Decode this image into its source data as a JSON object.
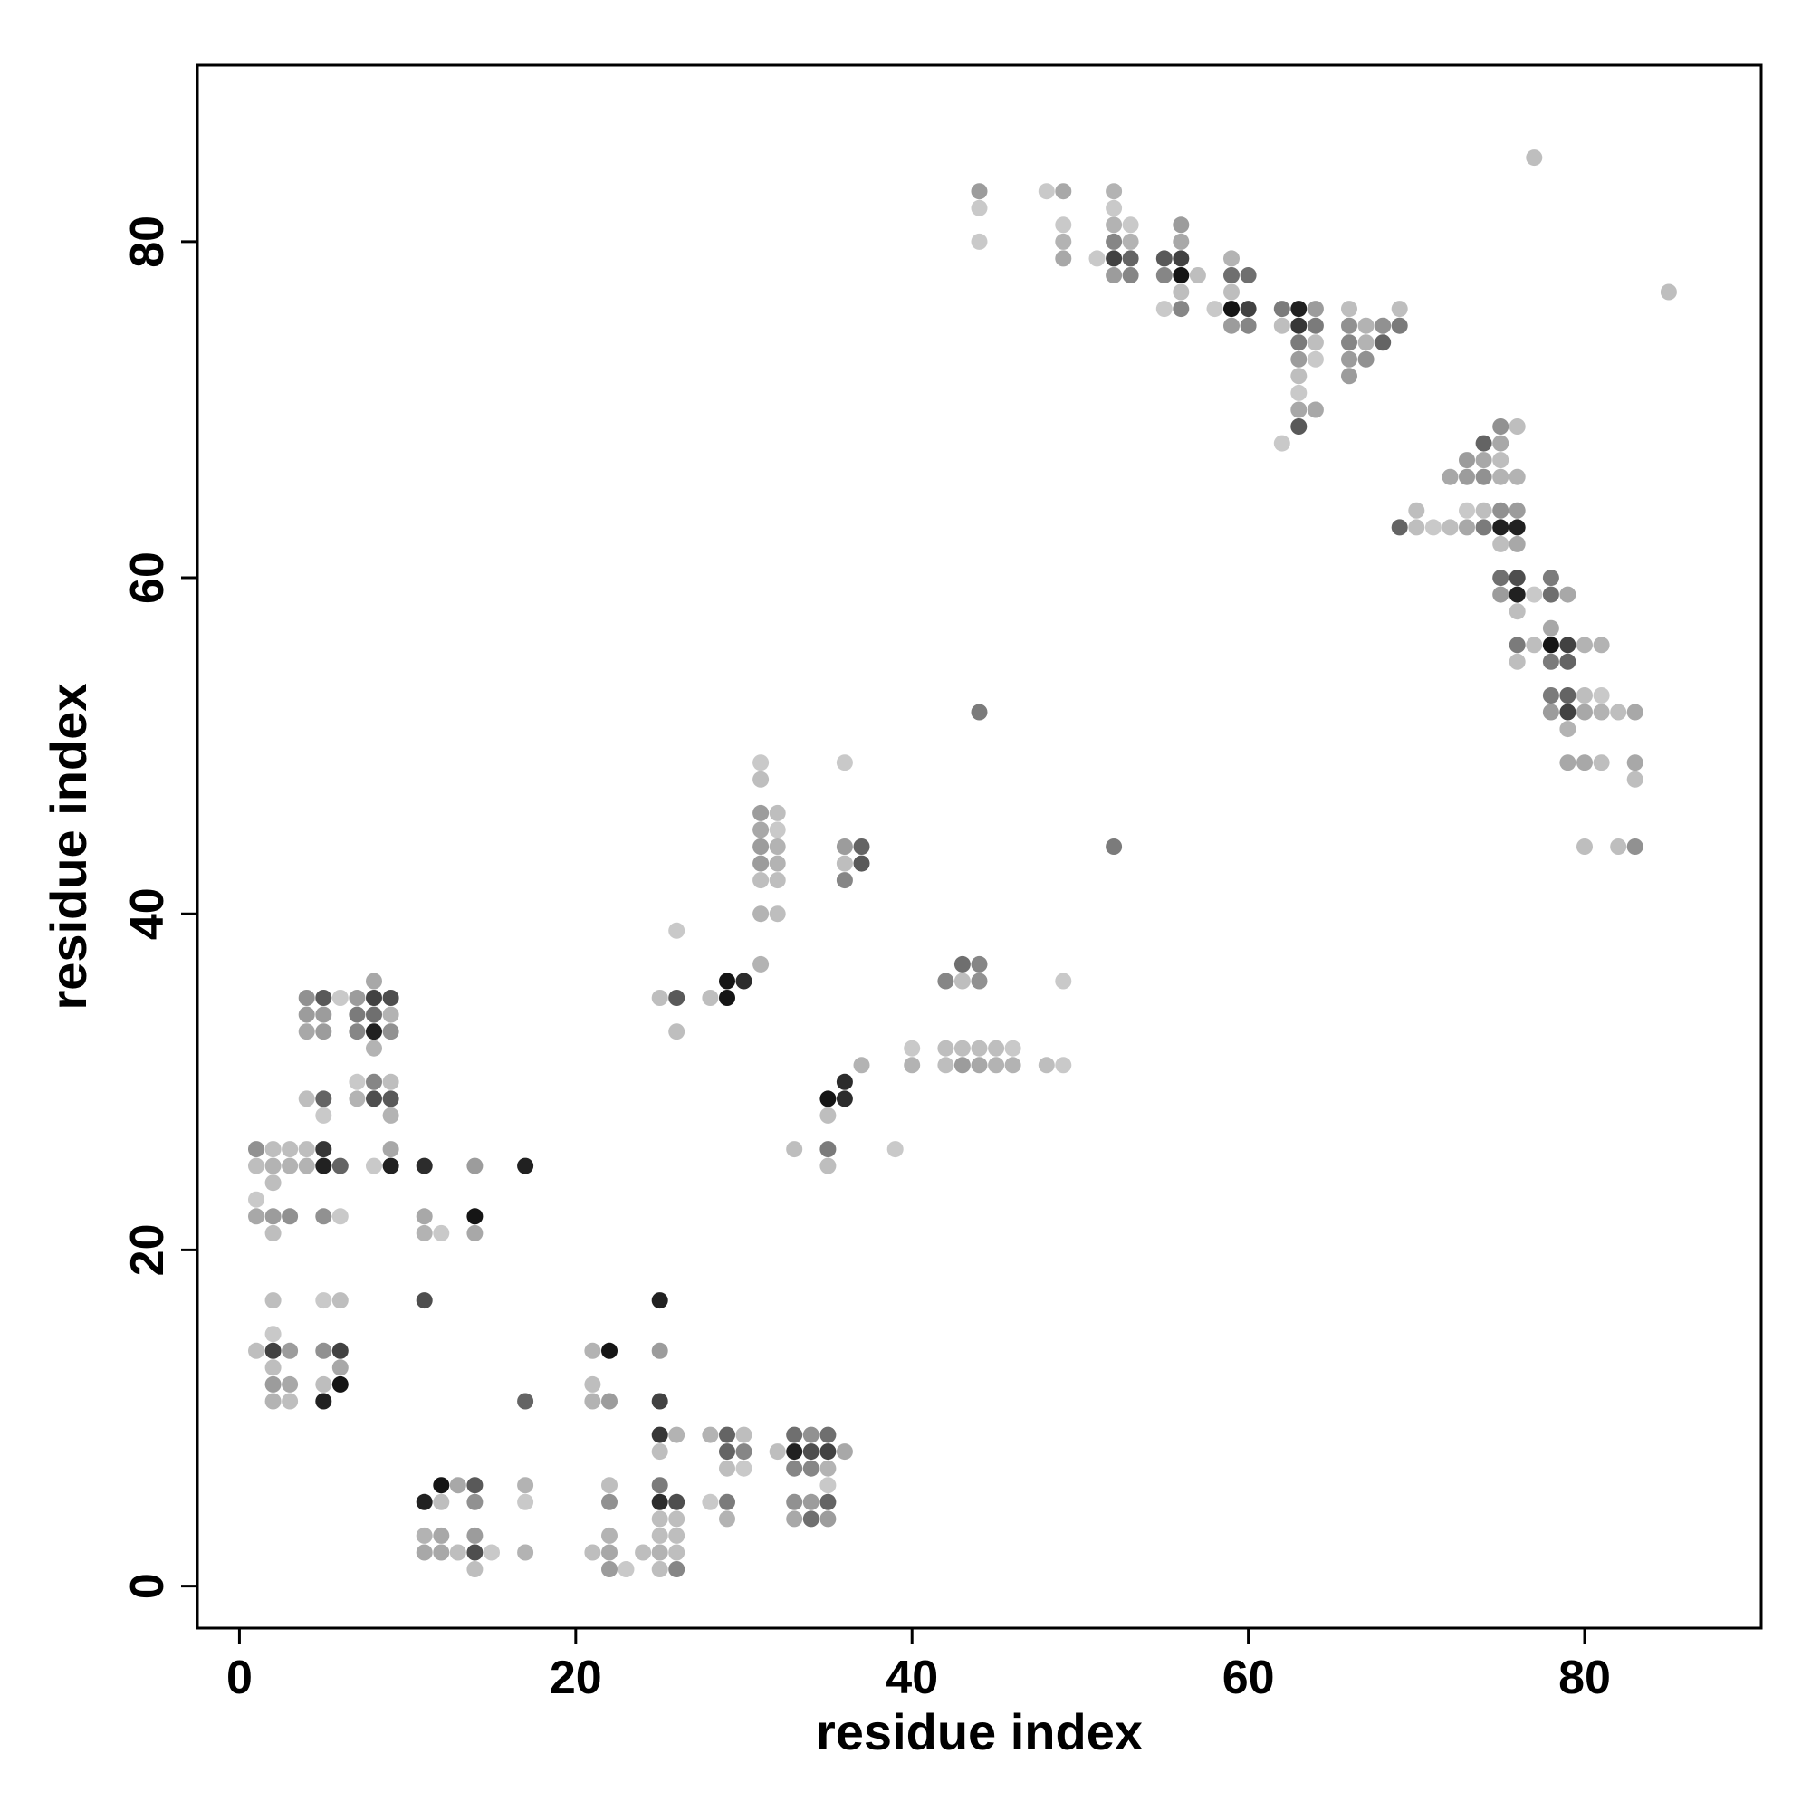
{
  "chart_data": {
    "type": "scatter",
    "title": "",
    "xlabel": "residue index",
    "ylabel": "residue index",
    "xlim": [
      -2.5,
      90.5
    ],
    "ylim": [
      -2.5,
      90.5
    ],
    "x_ticks": [
      0,
      20,
      40,
      60,
      80
    ],
    "y_ticks": [
      0,
      20,
      40,
      60,
      80
    ],
    "grid": false,
    "legend": "none",
    "color_scale": "grayscale; darker points indicate stronger contact (0 = lightest, 1 = darkest)",
    "points": [
      [
        1,
        26,
        0.4
      ],
      [
        1,
        25,
        0.2
      ],
      [
        1,
        23,
        0.15
      ],
      [
        1,
        22,
        0.3
      ],
      [
        1,
        14,
        0.2
      ],
      [
        2,
        26,
        0.2
      ],
      [
        2,
        25,
        0.25
      ],
      [
        2,
        24,
        0.2
      ],
      [
        2,
        22,
        0.35
      ],
      [
        2,
        21,
        0.2
      ],
      [
        2,
        17,
        0.2
      ],
      [
        2,
        15,
        0.15
      ],
      [
        2,
        14,
        0.75
      ],
      [
        2,
        13,
        0.2
      ],
      [
        2,
        12,
        0.35
      ],
      [
        2,
        11,
        0.25
      ],
      [
        3,
        26,
        0.2
      ],
      [
        3,
        25,
        0.25
      ],
      [
        3,
        22,
        0.4
      ],
      [
        3,
        14,
        0.35
      ],
      [
        3,
        12,
        0.3
      ],
      [
        3,
        11,
        0.2
      ],
      [
        4,
        35,
        0.4
      ],
      [
        4,
        34,
        0.35
      ],
      [
        4,
        33,
        0.3
      ],
      [
        4,
        29,
        0.2
      ],
      [
        4,
        26,
        0.2
      ],
      [
        4,
        25,
        0.25
      ],
      [
        5,
        35,
        0.65
      ],
      [
        5,
        34,
        0.35
      ],
      [
        5,
        33,
        0.35
      ],
      [
        5,
        29,
        0.6
      ],
      [
        5,
        28,
        0.15
      ],
      [
        5,
        26,
        0.8
      ],
      [
        5,
        25,
        0.9
      ],
      [
        5,
        22,
        0.4
      ],
      [
        5,
        17,
        0.15
      ],
      [
        5,
        14,
        0.4
      ],
      [
        5,
        12,
        0.2
      ],
      [
        5,
        11,
        0.9
      ],
      [
        6,
        35,
        0.15
      ],
      [
        6,
        25,
        0.6
      ],
      [
        6,
        22,
        0.15
      ],
      [
        6,
        17,
        0.2
      ],
      [
        6,
        14,
        0.75
      ],
      [
        6,
        13,
        0.3
      ],
      [
        6,
        12,
        0.95
      ],
      [
        7,
        35,
        0.35
      ],
      [
        7,
        34,
        0.5
      ],
      [
        7,
        33,
        0.45
      ],
      [
        7,
        30,
        0.15
      ],
      [
        7,
        29,
        0.25
      ],
      [
        8,
        36,
        0.3
      ],
      [
        8,
        35,
        0.75
      ],
      [
        8,
        34,
        0.55
      ],
      [
        8,
        33,
        0.9
      ],
      [
        8,
        32,
        0.25
      ],
      [
        8,
        30,
        0.45
      ],
      [
        8,
        29,
        0.7
      ],
      [
        8,
        25,
        0.15
      ],
      [
        9,
        35,
        0.7
      ],
      [
        9,
        34,
        0.25
      ],
      [
        9,
        33,
        0.4
      ],
      [
        9,
        30,
        0.2
      ],
      [
        9,
        29,
        0.65
      ],
      [
        9,
        28,
        0.25
      ],
      [
        9,
        26,
        0.3
      ],
      [
        9,
        25,
        0.9
      ],
      [
        11,
        25,
        0.85
      ],
      [
        11,
        22,
        0.3
      ],
      [
        11,
        21,
        0.25
      ],
      [
        11,
        17,
        0.7
      ],
      [
        11,
        5,
        0.9
      ],
      [
        11,
        3,
        0.25
      ],
      [
        11,
        2,
        0.3
      ],
      [
        12,
        21,
        0.15
      ],
      [
        12,
        6,
        0.95
      ],
      [
        12,
        5,
        0.2
      ],
      [
        12,
        3,
        0.3
      ],
      [
        12,
        2,
        0.3
      ],
      [
        13,
        6,
        0.3
      ],
      [
        13,
        2,
        0.2
      ],
      [
        14,
        25,
        0.35
      ],
      [
        14,
        22,
        0.95
      ],
      [
        14,
        21,
        0.3
      ],
      [
        14,
        6,
        0.65
      ],
      [
        14,
        5,
        0.4
      ],
      [
        14,
        3,
        0.35
      ],
      [
        14,
        2,
        0.7
      ],
      [
        14,
        1,
        0.2
      ],
      [
        15,
        2,
        0.15
      ],
      [
        17,
        25,
        0.9
      ],
      [
        17,
        11,
        0.6
      ],
      [
        17,
        6,
        0.25
      ],
      [
        17,
        5,
        0.15
      ],
      [
        17,
        2,
        0.25
      ],
      [
        21,
        14,
        0.25
      ],
      [
        21,
        12,
        0.2
      ],
      [
        21,
        11,
        0.25
      ],
      [
        21,
        2,
        0.2
      ],
      [
        22,
        14,
        0.95
      ],
      [
        22,
        11,
        0.35
      ],
      [
        22,
        6,
        0.2
      ],
      [
        22,
        5,
        0.4
      ],
      [
        22,
        3,
        0.25
      ],
      [
        22,
        2,
        0.3
      ],
      [
        22,
        1,
        0.35
      ],
      [
        23,
        1,
        0.15
      ],
      [
        24,
        2,
        0.2
      ],
      [
        25,
        35,
        0.2
      ],
      [
        25,
        17,
        0.9
      ],
      [
        25,
        14,
        0.35
      ],
      [
        25,
        11,
        0.75
      ],
      [
        25,
        9,
        0.8
      ],
      [
        25,
        8,
        0.2
      ],
      [
        25,
        6,
        0.5
      ],
      [
        25,
        5,
        0.85
      ],
      [
        25,
        4,
        0.2
      ],
      [
        25,
        3,
        0.2
      ],
      [
        25,
        2,
        0.25
      ],
      [
        25,
        1,
        0.2
      ],
      [
        26,
        39,
        0.15
      ],
      [
        26,
        35,
        0.65
      ],
      [
        26,
        33,
        0.2
      ],
      [
        26,
        9,
        0.25
      ],
      [
        26,
        5,
        0.7
      ],
      [
        26,
        4,
        0.2
      ],
      [
        26,
        3,
        0.2
      ],
      [
        26,
        2,
        0.2
      ],
      [
        26,
        1,
        0.45
      ],
      [
        28,
        35,
        0.2
      ],
      [
        28,
        9,
        0.25
      ],
      [
        28,
        5,
        0.15
      ],
      [
        29,
        36,
        0.95
      ],
      [
        29,
        35,
        0.95
      ],
      [
        29,
        9,
        0.6
      ],
      [
        29,
        8,
        0.6
      ],
      [
        29,
        7,
        0.2
      ],
      [
        29,
        5,
        0.5
      ],
      [
        29,
        4,
        0.25
      ],
      [
        30,
        36,
        0.85
      ],
      [
        30,
        9,
        0.2
      ],
      [
        30,
        8,
        0.45
      ],
      [
        30,
        7,
        0.15
      ],
      [
        31,
        49,
        0.15
      ],
      [
        31,
        48,
        0.2
      ],
      [
        31,
        46,
        0.35
      ],
      [
        31,
        45,
        0.3
      ],
      [
        31,
        44,
        0.35
      ],
      [
        31,
        43,
        0.35
      ],
      [
        31,
        42,
        0.2
      ],
      [
        31,
        40,
        0.25
      ],
      [
        31,
        37,
        0.25
      ],
      [
        32,
        46,
        0.2
      ],
      [
        32,
        45,
        0.15
      ],
      [
        32,
        44,
        0.25
      ],
      [
        32,
        43,
        0.25
      ],
      [
        32,
        42,
        0.2
      ],
      [
        32,
        40,
        0.2
      ],
      [
        32,
        8,
        0.2
      ],
      [
        33,
        26,
        0.2
      ],
      [
        33,
        9,
        0.55
      ],
      [
        33,
        8,
        0.9
      ],
      [
        33,
        7,
        0.45
      ],
      [
        33,
        5,
        0.4
      ],
      [
        33,
        4,
        0.3
      ],
      [
        34,
        9,
        0.4
      ],
      [
        34,
        8,
        0.7
      ],
      [
        34,
        7,
        0.45
      ],
      [
        34,
        5,
        0.35
      ],
      [
        34,
        4,
        0.55
      ],
      [
        35,
        29,
        0.95
      ],
      [
        35,
        28,
        0.2
      ],
      [
        35,
        26,
        0.5
      ],
      [
        35,
        25,
        0.2
      ],
      [
        35,
        9,
        0.55
      ],
      [
        35,
        8,
        0.75
      ],
      [
        35,
        7,
        0.25
      ],
      [
        35,
        6,
        0.15
      ],
      [
        35,
        5,
        0.6
      ],
      [
        35,
        4,
        0.35
      ],
      [
        36,
        49,
        0.15
      ],
      [
        36,
        44,
        0.35
      ],
      [
        36,
        43,
        0.2
      ],
      [
        36,
        42,
        0.45
      ],
      [
        36,
        30,
        0.85
      ],
      [
        36,
        29,
        0.85
      ],
      [
        36,
        8,
        0.3
      ],
      [
        37,
        44,
        0.6
      ],
      [
        37,
        43,
        0.65
      ],
      [
        37,
        31,
        0.25
      ],
      [
        39,
        26,
        0.15
      ],
      [
        40,
        32,
        0.15
      ],
      [
        40,
        31,
        0.25
      ],
      [
        42,
        36,
        0.45
      ],
      [
        42,
        32,
        0.2
      ],
      [
        42,
        31,
        0.2
      ],
      [
        43,
        37,
        0.55
      ],
      [
        43,
        36,
        0.2
      ],
      [
        43,
        32,
        0.2
      ],
      [
        43,
        31,
        0.35
      ],
      [
        44,
        83,
        0.35
      ],
      [
        44,
        82,
        0.15
      ],
      [
        44,
        80,
        0.15
      ],
      [
        44,
        52,
        0.5
      ],
      [
        44,
        37,
        0.45
      ],
      [
        44,
        36,
        0.4
      ],
      [
        44,
        32,
        0.2
      ],
      [
        44,
        31,
        0.3
      ],
      [
        45,
        32,
        0.2
      ],
      [
        45,
        31,
        0.25
      ],
      [
        46,
        32,
        0.15
      ],
      [
        46,
        31,
        0.25
      ],
      [
        48,
        83,
        0.15
      ],
      [
        48,
        31,
        0.2
      ],
      [
        49,
        83,
        0.3
      ],
      [
        49,
        81,
        0.15
      ],
      [
        49,
        80,
        0.25
      ],
      [
        49,
        79,
        0.3
      ],
      [
        49,
        36,
        0.15
      ],
      [
        49,
        31,
        0.15
      ],
      [
        51,
        79,
        0.15
      ],
      [
        52,
        83,
        0.25
      ],
      [
        52,
        82,
        0.15
      ],
      [
        52,
        81,
        0.25
      ],
      [
        52,
        80,
        0.45
      ],
      [
        52,
        79,
        0.75
      ],
      [
        52,
        78,
        0.35
      ],
      [
        52,
        44,
        0.5
      ],
      [
        53,
        81,
        0.15
      ],
      [
        53,
        80,
        0.25
      ],
      [
        53,
        79,
        0.6
      ],
      [
        53,
        78,
        0.45
      ],
      [
        55,
        79,
        0.65
      ],
      [
        55,
        78,
        0.45
      ],
      [
        55,
        76,
        0.15
      ],
      [
        56,
        81,
        0.35
      ],
      [
        56,
        80,
        0.3
      ],
      [
        56,
        79,
        0.75
      ],
      [
        56,
        78,
        0.95
      ],
      [
        56,
        77,
        0.2
      ],
      [
        56,
        76,
        0.45
      ],
      [
        57,
        78,
        0.2
      ],
      [
        58,
        76,
        0.15
      ],
      [
        59,
        79,
        0.25
      ],
      [
        59,
        78,
        0.55
      ],
      [
        59,
        77,
        0.2
      ],
      [
        59,
        76,
        0.95
      ],
      [
        59,
        75,
        0.35
      ],
      [
        60,
        78,
        0.55
      ],
      [
        60,
        76,
        0.75
      ],
      [
        60,
        75,
        0.45
      ],
      [
        62,
        76,
        0.5
      ],
      [
        62,
        75,
        0.2
      ],
      [
        62,
        68,
        0.15
      ],
      [
        63,
        76,
        0.9
      ],
      [
        63,
        75,
        0.8
      ],
      [
        63,
        74,
        0.5
      ],
      [
        63,
        73,
        0.35
      ],
      [
        63,
        72,
        0.2
      ],
      [
        63,
        71,
        0.15
      ],
      [
        63,
        70,
        0.3
      ],
      [
        63,
        69,
        0.65
      ],
      [
        64,
        76,
        0.35
      ],
      [
        64,
        75,
        0.5
      ],
      [
        64,
        74,
        0.2
      ],
      [
        64,
        73,
        0.15
      ],
      [
        64,
        70,
        0.3
      ],
      [
        66,
        76,
        0.2
      ],
      [
        66,
        75,
        0.4
      ],
      [
        66,
        74,
        0.45
      ],
      [
        66,
        73,
        0.35
      ],
      [
        66,
        72,
        0.35
      ],
      [
        67,
        75,
        0.25
      ],
      [
        67,
        74,
        0.25
      ],
      [
        67,
        73,
        0.4
      ],
      [
        68,
        75,
        0.4
      ],
      [
        68,
        74,
        0.6
      ],
      [
        69,
        76,
        0.2
      ],
      [
        69,
        75,
        0.5
      ],
      [
        69,
        63,
        0.6
      ],
      [
        70,
        64,
        0.2
      ],
      [
        70,
        63,
        0.2
      ],
      [
        71,
        63,
        0.15
      ],
      [
        72,
        66,
        0.3
      ],
      [
        72,
        63,
        0.2
      ],
      [
        73,
        67,
        0.35
      ],
      [
        73,
        66,
        0.35
      ],
      [
        73,
        64,
        0.15
      ],
      [
        73,
        63,
        0.3
      ],
      [
        74,
        68,
        0.6
      ],
      [
        74,
        67,
        0.3
      ],
      [
        74,
        66,
        0.4
      ],
      [
        74,
        64,
        0.2
      ],
      [
        74,
        63,
        0.5
      ],
      [
        75,
        69,
        0.4
      ],
      [
        75,
        68,
        0.3
      ],
      [
        75,
        67,
        0.2
      ],
      [
        75,
        66,
        0.25
      ],
      [
        75,
        64,
        0.4
      ],
      [
        75,
        63,
        0.9
      ],
      [
        75,
        62,
        0.2
      ],
      [
        75,
        60,
        0.55
      ],
      [
        75,
        59,
        0.35
      ],
      [
        76,
        69,
        0.2
      ],
      [
        76,
        66,
        0.25
      ],
      [
        76,
        64,
        0.35
      ],
      [
        76,
        63,
        0.9
      ],
      [
        76,
        62,
        0.3
      ],
      [
        76,
        60,
        0.7
      ],
      [
        76,
        59,
        0.9
      ],
      [
        76,
        58,
        0.2
      ],
      [
        76,
        56,
        0.5
      ],
      [
        76,
        55,
        0.2
      ],
      [
        77,
        59,
        0.15
      ],
      [
        77,
        56,
        0.2
      ],
      [
        77,
        85,
        0.2
      ],
      [
        78,
        60,
        0.5
      ],
      [
        78,
        59,
        0.55
      ],
      [
        78,
        57,
        0.3
      ],
      [
        78,
        56,
        0.95
      ],
      [
        78,
        55,
        0.5
      ],
      [
        78,
        53,
        0.5
      ],
      [
        78,
        52,
        0.35
      ],
      [
        79,
        59,
        0.3
      ],
      [
        79,
        56,
        0.75
      ],
      [
        79,
        55,
        0.6
      ],
      [
        79,
        53,
        0.6
      ],
      [
        79,
        52,
        0.75
      ],
      [
        79,
        51,
        0.25
      ],
      [
        79,
        49,
        0.3
      ],
      [
        80,
        56,
        0.25
      ],
      [
        80,
        53,
        0.2
      ],
      [
        80,
        52,
        0.3
      ],
      [
        80,
        49,
        0.3
      ],
      [
        80,
        44,
        0.2
      ],
      [
        81,
        56,
        0.25
      ],
      [
        81,
        53,
        0.15
      ],
      [
        81,
        52,
        0.25
      ],
      [
        81,
        49,
        0.2
      ],
      [
        82,
        52,
        0.2
      ],
      [
        82,
        44,
        0.2
      ],
      [
        83,
        52,
        0.3
      ],
      [
        83,
        49,
        0.3
      ],
      [
        83,
        48,
        0.2
      ],
      [
        83,
        44,
        0.4
      ],
      [
        85,
        77,
        0.2
      ]
    ]
  }
}
